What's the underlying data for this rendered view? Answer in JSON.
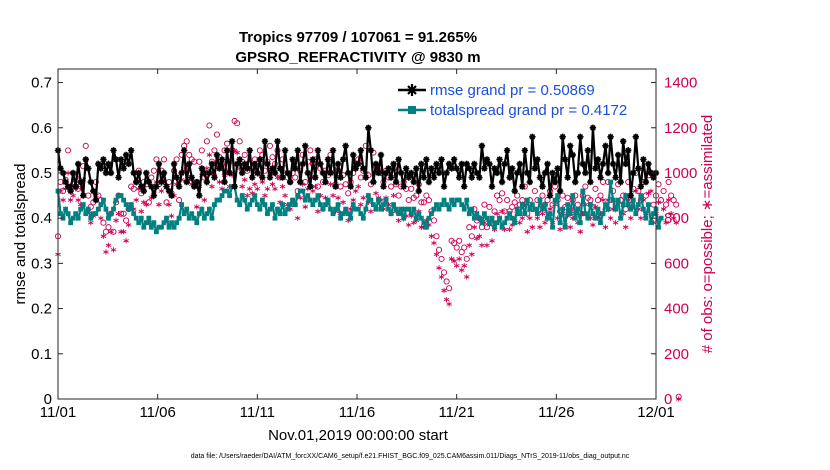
{
  "chart_data": {
    "type": "line",
    "title": "Tropics 97709 / 107061 = 91.265%",
    "subtitle": "GPSRO_REFRACTIVITY @ 9830 m",
    "xlabel": "Nov.01,2019 00:00:00 start",
    "ylabel_left": "rmse and totalspread",
    "ylabel_right": "# of obs: o=possible; ∗=assimilated",
    "footer": "data file: /Users/raeder/DAI/ATM_forcXX/CAM6_setup/f.e21.FHIST_BGC.f09_025.CAM6assim.011/Diags_NTrS_2019-11/obs_diag_output.nc",
    "x_range_days": [
      0,
      30
    ],
    "x_ticks": [
      {
        "day": 0,
        "label": "11/01"
      },
      {
        "day": 5,
        "label": "11/06"
      },
      {
        "day": 10,
        "label": "11/11"
      },
      {
        "day": 15,
        "label": "11/16"
      },
      {
        "day": 20,
        "label": "11/21"
      },
      {
        "day": 25,
        "label": "11/26"
      },
      {
        "day": 30,
        "label": "12/01"
      }
    ],
    "y_left_range": [
      0,
      0.73
    ],
    "y_left_ticks": [
      "0",
      "0.1",
      "0.2",
      "0.3",
      "0.4",
      "0.5",
      "0.6",
      "0.7"
    ],
    "y_right_range": [
      0,
      1460
    ],
    "y_right_ticks": [
      "0",
      "200",
      "400",
      "600",
      "800",
      "1000",
      "1200",
      "1400"
    ],
    "legend": [
      {
        "name": "rmse grand pr = 0.50869",
        "color": "#000000"
      },
      {
        "name": "totalspread grand pr = 0.4172",
        "color": "#008080"
      }
    ],
    "colors": {
      "rmse": "#000000",
      "spread": "#008080",
      "obs": "#cc0055",
      "legend_text": "#1a4fd8"
    },
    "series": [
      {
        "name": "rmse",
        "axis": "left",
        "values": [
          0.55,
          0.51,
          0.5,
          0.48,
          0.47,
          0.46,
          0.5,
          0.47,
          0.52,
          0.48,
          0.45,
          0.53,
          0.51,
          0.48,
          0.46,
          0.44,
          0.52,
          0.51,
          0.53,
          0.5,
          0.52,
          0.5,
          0.55,
          0.53,
          0.49,
          0.53,
          0.51,
          0.54,
          0.52,
          0.55,
          0.5,
          0.48,
          0.5,
          0.47,
          0.46,
          0.5,
          0.48,
          0.47,
          0.45,
          0.47,
          0.52,
          0.48,
          0.5,
          0.47,
          0.46,
          0.45,
          0.52,
          0.49,
          0.47,
          0.5,
          0.55,
          0.48,
          0.52,
          0.49,
          0.47,
          0.48,
          0.45,
          0.51,
          0.5,
          0.48,
          0.5,
          0.52,
          0.49,
          0.54,
          0.51,
          0.53,
          0.48,
          0.55,
          0.5,
          0.57,
          0.47,
          0.52,
          0.53,
          0.5,
          0.52,
          0.51,
          0.55,
          0.49,
          0.52,
          0.5,
          0.53,
          0.49,
          0.57,
          0.52,
          0.49,
          0.51,
          0.5,
          0.57,
          0.51,
          0.49,
          0.55,
          0.5,
          0.48,
          0.53,
          0.51,
          0.55,
          0.48,
          0.52,
          0.56,
          0.5,
          0.47,
          0.53,
          0.49,
          0.55,
          0.52,
          0.5,
          0.48,
          0.53,
          0.5,
          0.55,
          0.47,
          0.52,
          0.49,
          0.53,
          0.56,
          0.5,
          0.47,
          0.54,
          0.51,
          0.52,
          0.55,
          0.51,
          0.49,
          0.6,
          0.55,
          0.48,
          0.52,
          0.5,
          0.54,
          0.47,
          0.5,
          0.51,
          0.49,
          0.52,
          0.48,
          0.53,
          0.5,
          0.47,
          0.51,
          0.49,
          0.5,
          0.48,
          0.51,
          0.46,
          0.52,
          0.49,
          0.53,
          0.48,
          0.51,
          0.49,
          0.52,
          0.5,
          0.53,
          0.47,
          0.5,
          0.52,
          0.51,
          0.53,
          0.51,
          0.49,
          0.52,
          0.47,
          0.52,
          0.51,
          0.49,
          0.52,
          0.5,
          0.49,
          0.56,
          0.51,
          0.53,
          0.52,
          0.47,
          0.51,
          0.5,
          0.53,
          0.48,
          0.52,
          0.55,
          0.49,
          0.51,
          0.46,
          0.5,
          0.52,
          0.47,
          0.55,
          0.5,
          0.48,
          0.58,
          0.51,
          0.53,
          0.49,
          0.47,
          0.5,
          0.52,
          0.45,
          0.5,
          0.48,
          0.51,
          0.46,
          0.58,
          0.53,
          0.49,
          0.56,
          0.54,
          0.48,
          0.5,
          0.58,
          0.52,
          0.5,
          0.55,
          0.48,
          0.6,
          0.51,
          0.53,
          0.49,
          0.52,
          0.56,
          0.5,
          0.58,
          0.52,
          0.49,
          0.54,
          0.48,
          0.57,
          0.52,
          0.55,
          0.45,
          0.5,
          0.58,
          0.51,
          0.47,
          0.53,
          0.48,
          0.52,
          0.5,
          0.49,
          0.5
        ]
      },
      {
        "name": "totalspread",
        "axis": "left",
        "values": [
          0.46,
          0.41,
          0.4,
          0.42,
          0.41,
          0.39,
          0.4,
          0.41,
          0.4,
          0.42,
          0.43,
          0.41,
          0.42,
          0.4,
          0.41,
          0.41,
          0.42,
          0.43,
          0.44,
          0.42,
          0.4,
          0.41,
          0.42,
          0.44,
          0.45,
          0.45,
          0.44,
          0.43,
          0.42,
          0.43,
          0.41,
          0.4,
          0.39,
          0.4,
          0.38,
          0.39,
          0.4,
          0.38,
          0.39,
          0.37,
          0.38,
          0.38,
          0.39,
          0.4,
          0.38,
          0.39,
          0.38,
          0.39,
          0.4,
          0.43,
          0.41,
          0.42,
          0.4,
          0.41,
          0.4,
          0.39,
          0.41,
          0.42,
          0.4,
          0.41,
          0.42,
          0.4,
          0.43,
          0.44,
          0.44,
          0.45,
          0.46,
          0.46,
          0.45,
          0.47,
          0.47,
          0.44,
          0.43,
          0.45,
          0.44,
          0.42,
          0.43,
          0.44,
          0.45,
          0.43,
          0.42,
          0.44,
          0.43,
          0.41,
          0.42,
          0.43,
          0.4,
          0.42,
          0.41,
          0.43,
          0.41,
          0.42,
          0.43,
          0.44,
          0.43,
          0.45,
          0.46,
          0.46,
          0.44,
          0.45,
          0.44,
          0.43,
          0.44,
          0.45,
          0.43,
          0.42,
          0.43,
          0.44,
          0.42,
          0.41,
          0.42,
          0.43,
          0.4,
          0.41,
          0.42,
          0.41,
          0.4,
          0.43,
          0.42,
          0.42,
          0.41,
          0.4,
          0.42,
          0.45,
          0.44,
          0.43,
          0.42,
          0.44,
          0.42,
          0.43,
          0.44,
          0.42,
          0.41,
          0.43,
          0.42,
          0.41,
          0.42,
          0.4,
          0.42,
          0.42,
          0.41,
          0.42,
          0.4,
          0.41,
          0.4,
          0.39,
          0.38,
          0.4,
          0.41,
          0.42,
          0.43,
          0.42,
          0.43,
          0.44,
          0.43,
          0.42,
          0.44,
          0.43,
          0.44,
          0.44,
          0.43,
          0.42,
          0.44,
          0.41,
          0.42,
          0.4,
          0.41,
          0.4,
          0.39,
          0.41,
          0.4,
          0.39,
          0.4,
          0.38,
          0.39,
          0.4,
          0.38,
          0.39,
          0.4,
          0.41,
          0.4,
          0.39,
          0.42,
          0.41,
          0.43,
          0.41,
          0.44,
          0.42,
          0.43,
          0.42,
          0.41,
          0.44,
          0.42,
          0.43,
          0.4,
          0.41,
          0.38,
          0.44,
          0.45,
          0.39,
          0.42,
          0.38,
          0.43,
          0.41,
          0.45,
          0.4,
          0.42,
          0.39,
          0.46,
          0.41,
          0.4,
          0.43,
          0.41,
          0.4,
          0.42,
          0.39,
          0.41,
          0.43,
          0.42,
          0.48,
          0.44,
          0.42,
          0.44,
          0.4,
          0.43,
          0.45,
          0.43,
          0.42,
          0.44,
          0.41,
          0.43,
          0.45,
          0.42,
          0.4,
          0.43,
          0.39,
          0.41,
          0.42,
          0.38,
          0.4
        ]
      },
      {
        "name": "obs possible (o)",
        "axis": "right",
        "values": [
          720,
          960,
          920,
          970,
          1100,
          940,
          950,
          980,
          930,
          940,
          1030,
          1120,
          900,
          850,
          870,
          960,
          900,
          880,
          780,
          740,
          760,
          820,
          740,
          870,
          900,
          820,
          820,
          790,
          840,
          940,
          930,
          960,
          1010,
          910,
          960,
          950,
          870,
          980,
          1010,
          1060,
          950,
          1010,
          1060,
          870,
          960,
          910,
          1010,
          1060,
          880,
          1080,
          1120,
          1140,
          1080,
          1060,
          1050,
          960,
          1050,
          1100,
          980,
          1140,
          1210,
          1050,
          1100,
          1170,
          1070,
          1040,
          1100,
          1130,
          1050,
          1100,
          1230,
          1220,
          1140,
          1050,
          1080,
          1010,
          1040,
          1020,
          1060,
          1040,
          1100,
          1080,
          1010,
          1050,
          1120,
          1070,
          1040,
          1100,
          980,
          1060,
          1020,
          980,
          960,
          1000,
          980,
          920,
          1010,
          1080,
          960,
          1050,
          1100,
          1040,
          1060,
          940,
          1020,
          960,
          1010,
          990,
          1080,
          1020,
          950,
          1010,
          940,
          990,
          950,
          910,
          960,
          1000,
          1040,
          1060,
          980,
          1010,
          1120,
          990,
          950,
          1090,
          1030,
          1010,
          1000,
          960,
          1010,
          980,
          940,
          1020,
          950,
          900,
          940,
          960,
          930,
          880,
          930,
          890,
          900,
          950,
          870,
          870,
          900,
          880,
          830,
          790,
          720,
          660,
          620,
          560,
          520,
          490,
          700,
          690,
          670,
          700,
          650,
          670,
          620,
          760,
          720,
          840,
          790,
          800,
          760,
          860,
          760,
          850,
          780,
          830,
          900,
          880,
          910,
          830,
          880,
          830,
          850,
          870,
          900,
          860,
          880,
          940,
          820,
          880,
          840,
          920,
          880,
          840,
          900,
          860,
          880,
          920,
          860,
          940,
          880,
          830,
          900,
          850,
          890,
          840,
          880,
          900,
          860,
          820,
          900,
          940,
          890,
          880,
          850,
          930,
          880,
          900,
          960,
          840,
          960,
          880,
          920,
          860,
          950,
          880,
          900,
          840,
          960,
          880,
          930,
          1000,
          920,
          880,
          960,
          900,
          990,
          1000,
          860,
          900,
          950,
          880,
          920,
          860,
          960,
          900,
          880,
          860,
          10
        ]
      },
      {
        "name": "obs assimilated (∗)",
        "axis": "right",
        "values": [
          640,
          920,
          880,
          930,
          1000,
          880,
          900,
          930,
          880,
          860,
          970,
          1060,
          830,
          780,
          810,
          900,
          840,
          800,
          720,
          650,
          680,
          740,
          660,
          790,
          820,
          740,
          740,
          700,
          770,
          860,
          840,
          880,
          930,
          830,
          870,
          860,
          780,
          890,
          920,
          960,
          860,
          920,
          960,
          790,
          860,
          810,
          900,
          950,
          800,
          970,
          1010,
          1030,
          970,
          950,
          940,
          850,
          940,
          990,
          880,
          1020,
          1080,
          940,
          990,
          1040,
          960,
          930,
          990,
          1010,
          940,
          990,
          1100,
          1090,
          1020,
          940,
          970,
          900,
          930,
          910,
          950,
          930,
          990,
          960,
          900,
          930,
          1000,
          950,
          930,
          980,
          870,
          940,
          900,
          860,
          840,
          880,
          860,
          800,
          890,
          950,
          850,
          930,
          980,
          920,
          940,
          830,
          900,
          840,
          890,
          870,
          950,
          900,
          830,
          890,
          820,
          870,
          830,
          790,
          840,
          880,
          920,
          940,
          860,
          890,
          1000,
          870,
          830,
          960,
          910,
          890,
          880,
          840,
          890,
          860,
          820,
          900,
          830,
          790,
          820,
          840,
          810,
          770,
          810,
          780,
          790,
          830,
          760,
          760,
          790,
          770,
          720,
          690,
          640,
          580,
          540,
          480,
          440,
          420,
          620,
          610,
          590,
          620,
          570,
          590,
          540,
          680,
          640,
          760,
          710,
          720,
          680,
          780,
          680,
          770,
          700,
          750,
          820,
          800,
          830,
          750,
          800,
          750,
          770,
          790,
          820,
          780,
          800,
          860,
          740,
          800,
          760,
          840,
          800,
          760,
          820,
          780,
          800,
          840,
          780,
          860,
          800,
          750,
          820,
          770,
          810,
          760,
          800,
          820,
          780,
          740,
          820,
          860,
          810,
          800,
          770,
          850,
          800,
          820,
          880,
          760,
          880,
          800,
          840,
          780,
          870,
          800,
          820,
          760,
          880,
          800,
          850,
          920,
          840,
          800,
          880,
          820,
          910,
          920,
          780,
          820,
          870,
          800,
          840,
          780,
          880,
          820,
          800,
          780,
          0
        ]
      }
    ]
  }
}
